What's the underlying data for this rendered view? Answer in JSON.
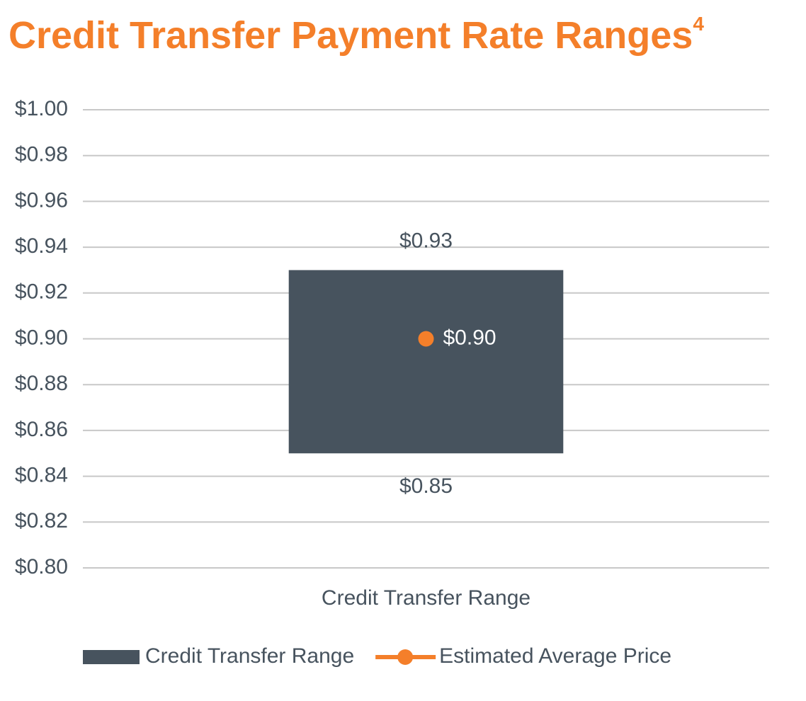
{
  "chart_data": {
    "type": "range",
    "title": "Credit Transfer Payment Rate Ranges",
    "title_superscript": "4",
    "categories": [
      "Credit Transfer Range"
    ],
    "series": [
      {
        "name": "Credit Transfer Range",
        "type": "range",
        "color": "#47535e",
        "lows": [
          0.85
        ],
        "highs": [
          0.93
        ],
        "low_labels": [
          "$0.85"
        ],
        "high_labels": [
          "$0.93"
        ]
      },
      {
        "name": "Estimated Average Price",
        "type": "point",
        "color": "#f47f2a",
        "values": [
          0.9
        ],
        "value_labels": [
          "$0.90"
        ]
      }
    ],
    "ylim": [
      0.8,
      1.0
    ],
    "yticks": [
      {
        "value": 0.8,
        "label": "$0.80"
      },
      {
        "value": 0.82,
        "label": "$0.82"
      },
      {
        "value": 0.84,
        "label": "$0.84"
      },
      {
        "value": 0.86,
        "label": "$0.86"
      },
      {
        "value": 0.88,
        "label": "$0.88"
      },
      {
        "value": 0.9,
        "label": "$0.90"
      },
      {
        "value": 0.92,
        "label": "$0.92"
      },
      {
        "value": 0.94,
        "label": "$0.94"
      },
      {
        "value": 0.96,
        "label": "$0.96"
      },
      {
        "value": 0.98,
        "label": "$0.98"
      },
      {
        "value": 1.0,
        "label": "$1.00"
      }
    ],
    "grid": true,
    "legend": "bottom"
  }
}
